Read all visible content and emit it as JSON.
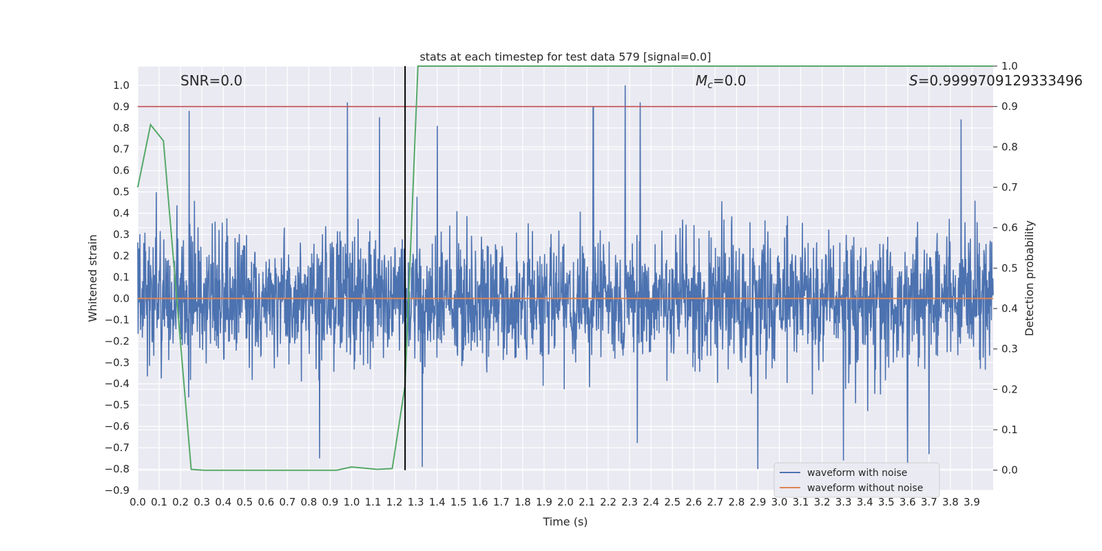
{
  "chart_data": {
    "type": "line",
    "title": "stats at each timestep for test data 579 [signal=0.0]",
    "xlabel": "Time (s)",
    "ylabel": "Whitened strain",
    "ylabel_right": "Detection probability",
    "xlim": [
      0.0,
      4.0
    ],
    "ylim": [
      -0.9,
      1.09
    ],
    "ylim_right": [
      -0.05,
      1.0
    ],
    "x_ticks": [
      "0.0",
      "0.1",
      "0.2",
      "0.3",
      "0.4",
      "0.5",
      "0.6",
      "0.7",
      "0.8",
      "0.9",
      "1.0",
      "1.1",
      "1.2",
      "1.3",
      "1.4",
      "1.5",
      "1.6",
      "1.7",
      "1.8",
      "1.9",
      "2.0",
      "2.1",
      "2.2",
      "2.3",
      "2.4",
      "2.5",
      "2.6",
      "2.7",
      "2.8",
      "2.9",
      "3.0",
      "3.1",
      "3.2",
      "3.3",
      "3.4",
      "3.5",
      "3.6",
      "3.7",
      "3.8",
      "3.9"
    ],
    "y_ticks": [
      "1.0",
      "0.9",
      "0.8",
      "0.7",
      "0.6",
      "0.5",
      "0.4",
      "0.3",
      "0.2",
      "0.1",
      "0.0",
      "−0.1",
      "−0.2",
      "−0.3",
      "−0.4",
      "−0.5",
      "−0.6",
      "−0.7",
      "−0.8",
      "−0.9"
    ],
    "y_ticks_right": [
      "1.0",
      "0.9",
      "0.8",
      "0.7",
      "0.6",
      "0.5",
      "0.4",
      "0.3",
      "0.2",
      "0.1",
      "0.0"
    ],
    "grid": true,
    "legend_position": "lower-right",
    "annotations": {
      "snr": "SNR=0.0",
      "mc_symbol": "M",
      "mc_sub": "c",
      "mc_value": "=0.0",
      "s_symbol": "S",
      "s_value": "=0.9999709129333496"
    },
    "series": [
      {
        "name": "waveform with noise",
        "color": "#4c72b0",
        "kind": "noise",
        "mean": 0.0,
        "amplitude_typical": 0.25,
        "peaks": [
          [
            0.24,
            0.88
          ],
          [
            0.98,
            0.92
          ],
          [
            2.28,
            1.0
          ],
          [
            2.35,
            0.92
          ],
          [
            2.13,
            0.9
          ],
          [
            3.85,
            0.84
          ],
          [
            1.4,
            0.81
          ],
          [
            1.13,
            0.85
          ]
        ],
        "troughs": [
          [
            2.9,
            -0.8
          ],
          [
            3.6,
            -0.78
          ],
          [
            1.33,
            -0.79
          ],
          [
            3.3,
            -0.76
          ],
          [
            3.7,
            -0.73
          ],
          [
            0.85,
            -0.75
          ]
        ]
      },
      {
        "name": "waveform without noise",
        "color": "#dd8452",
        "x": [
          0.0,
          4.0
        ],
        "y": [
          0.0,
          0.0
        ]
      }
    ],
    "detection_probability": {
      "color": "#55a868",
      "x": [
        0.0,
        0.06,
        0.12,
        0.25,
        0.31,
        0.93,
        1.0,
        1.12,
        1.19,
        1.25,
        1.31,
        4.0
      ],
      "y": [
        0.7,
        0.855,
        0.815,
        0.002,
        0.0,
        0.0,
        0.008,
        0.002,
        0.004,
        0.21,
        1.0,
        1.0
      ]
    },
    "threshold": {
      "color": "#c44e52",
      "value_right": 0.9
    },
    "vertical_marker": {
      "color": "#000000",
      "x": 1.25
    }
  }
}
